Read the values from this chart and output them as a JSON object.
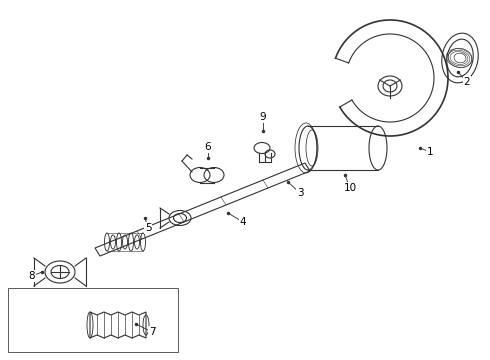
{
  "bg_color": "#ffffff",
  "line_color": "#333333",
  "label_color": "#000000",
  "figsize": [
    4.9,
    3.6
  ],
  "dpi": 100,
  "parts_info": {
    "1": [
      430,
      152,
      420,
      148
    ],
    "2": [
      467,
      82,
      458,
      72
    ],
    "3": [
      300,
      193,
      288,
      182
    ],
    "4": [
      243,
      222,
      228,
      213
    ],
    "5": [
      148,
      228,
      145,
      218
    ],
    "6": [
      208,
      147,
      208,
      158
    ],
    "7": [
      152,
      332,
      136,
      324
    ],
    "8": [
      32,
      276,
      42,
      272
    ],
    "9": [
      263,
      117,
      263,
      131
    ],
    "10": [
      350,
      188,
      345,
      175
    ]
  }
}
